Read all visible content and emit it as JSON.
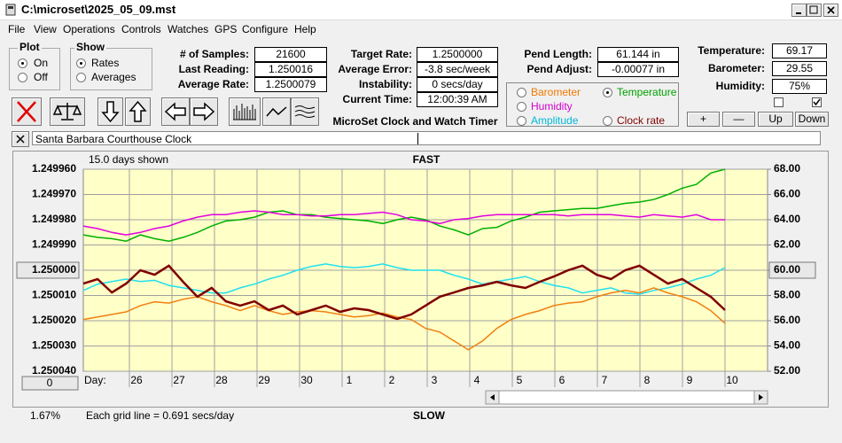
{
  "window": {
    "title": "C:\\microset\\2025_05_09.mst"
  },
  "menu": [
    "File",
    "View",
    "Operations",
    "Controls",
    "Watches",
    "GPS",
    "Configure",
    "Help"
  ],
  "plot_group": {
    "label": "Plot",
    "options": [
      {
        "label": "On",
        "checked": true
      },
      {
        "label": "Off",
        "checked": false
      }
    ]
  },
  "show_group": {
    "label": "Show",
    "options": [
      {
        "label": "Rates",
        "checked": true
      },
      {
        "label": "Averages",
        "checked": false
      }
    ]
  },
  "stats_1": [
    {
      "label": "# of Samples:",
      "value": "21600"
    },
    {
      "label": "Last Reading:",
      "value": "1.250016"
    },
    {
      "label": "Average Rate:",
      "value": "1.2500079"
    }
  ],
  "stats_2": [
    {
      "label": "Target Rate:",
      "value": "1.2500000"
    },
    {
      "label": "Average Error:",
      "value": "-3.8 sec/week"
    },
    {
      "label": "Instability:",
      "value": "0 secs/day"
    },
    {
      "label": "Current Time:",
      "value": "12:00:39 AM"
    }
  ],
  "stats_3": [
    {
      "label": "Pend Length:",
      "value": "61.144 in"
    },
    {
      "label": "Pend Adjust:",
      "value": "-0.00077 in"
    }
  ],
  "stats_4": [
    {
      "label": "Temperature:",
      "value": "69.17"
    },
    {
      "label": "Barometer:",
      "value": "29.55"
    },
    {
      "label": "Humidity:",
      "value": "75%"
    }
  ],
  "app_title": "MicroSet Clock and Watch Timer",
  "trace_options": [
    {
      "label": "Barometer",
      "color": "#f07800",
      "checked": false
    },
    {
      "label": "Temperature",
      "color": "#00a000",
      "checked": true
    },
    {
      "label": "Humidity",
      "color": "#d000d0",
      "checked": false
    },
    {
      "label": "Amplitude",
      "color": "#00b8d8",
      "checked": false
    },
    {
      "label": "Clock rate",
      "color": "#800000",
      "checked": false
    }
  ],
  "checkboxes": [
    {
      "checked": false
    },
    {
      "checked": true
    }
  ],
  "buttons": [
    "+",
    "—",
    "Up",
    "Down"
  ],
  "clock_name": "Santa Barbara Courthouse Clock",
  "chart": {
    "type": "line",
    "days_shown": "15.0 days shown",
    "top_label": "FAST",
    "bottom_label": "SLOW",
    "x_label": "Day:",
    "days": [
      "26",
      "27",
      "28",
      "29",
      "30",
      "1",
      "2",
      "3",
      "4",
      "5",
      "6",
      "7",
      "8",
      "9",
      "10"
    ],
    "grid_note": "Each grid line = 0.691 secs/day",
    "zoom": "1.67%",
    "offset_button": "0",
    "grid": true,
    "ylim": [
      1.25004,
      1.24996
    ],
    "yticks": [
      {
        "value": 1.24996,
        "label": "1.249960"
      },
      {
        "value": 1.24997,
        "label": "1.249970"
      },
      {
        "value": 1.24998,
        "label": "1.249980"
      },
      {
        "value": 1.24999,
        "label": "1.249990"
      },
      {
        "value": 1.25,
        "label": "1.250000"
      },
      {
        "value": 1.25001,
        "label": "1.250010"
      },
      {
        "value": 1.25002,
        "label": "1.250020"
      },
      {
        "value": 1.25003,
        "label": "1.250030"
      },
      {
        "value": 1.25004,
        "label": "1.250040"
      }
    ],
    "y2lim": [
      52,
      68
    ],
    "y2ticks": [
      {
        "value": 68,
        "label": "68.00"
      },
      {
        "value": 66,
        "label": "66.00"
      },
      {
        "value": 64,
        "label": "64.00"
      },
      {
        "value": 62,
        "label": "62.00"
      },
      {
        "value": 60,
        "label": "60.00"
      },
      {
        "value": 58,
        "label": "58.00"
      },
      {
        "value": 56,
        "label": "56.00"
      },
      {
        "value": 54,
        "label": "54.00"
      },
      {
        "value": 52,
        "label": "52.00"
      }
    ],
    "series": [
      {
        "name": "Temperature",
        "color": "#00b000",
        "axis": "y2",
        "values": [
          62.8,
          62.6,
          62.5,
          62.3,
          62.8,
          62.5,
          62.3,
          62.6,
          63.0,
          63.5,
          63.9,
          64.0,
          64.2,
          64.6,
          64.7,
          64.4,
          64.4,
          64.2,
          64.1,
          64.0,
          63.9,
          63.7,
          64.0,
          64.2,
          64.0,
          63.5,
          63.2,
          62.8,
          63.3,
          63.4,
          63.9,
          64.2,
          64.6,
          64.7,
          64.8,
          64.9,
          64.9,
          65.1,
          65.3,
          65.4,
          65.6,
          66.0,
          66.5,
          66.8,
          67.7,
          68.0
        ]
      },
      {
        "name": "Humidity",
        "color": "#e000e0",
        "axis": "y2",
        "values": [
          63.5,
          63.3,
          63.0,
          62.8,
          63.0,
          63.3,
          63.5,
          63.9,
          64.2,
          64.4,
          64.4,
          64.6,
          64.7,
          64.6,
          64.4,
          64.4,
          64.3,
          64.3,
          64.4,
          64.4,
          64.5,
          64.6,
          64.4,
          64.0,
          63.9,
          63.7,
          64.0,
          64.1,
          64.3,
          64.4,
          64.4,
          64.4,
          64.4,
          64.4,
          64.3,
          64.4,
          64.4,
          64.4,
          64.3,
          64.2,
          64.4,
          64.3,
          64.2,
          64.4,
          64.0,
          64.0
        ]
      },
      {
        "name": "Amplitude",
        "color": "#20e0f0",
        "axis": "y2",
        "values": [
          58.4,
          58.9,
          59.1,
          59.3,
          59.1,
          59.2,
          58.8,
          58.6,
          58.4,
          58.2,
          58.2,
          58.6,
          58.9,
          59.3,
          59.6,
          60.0,
          60.3,
          60.5,
          60.3,
          60.2,
          60.3,
          60.5,
          60.2,
          60.0,
          60.0,
          60.0,
          59.6,
          59.3,
          58.9,
          59.1,
          59.3,
          59.5,
          59.1,
          58.8,
          58.6,
          58.2,
          58.4,
          58.6,
          58.2,
          58.1,
          58.4,
          58.6,
          58.9,
          59.3,
          59.6,
          60.2
        ]
      },
      {
        "name": "Barometer",
        "color": "#f08010",
        "axis": "y2",
        "values": [
          56.1,
          56.3,
          56.5,
          56.7,
          57.2,
          57.5,
          57.4,
          57.7,
          57.9,
          57.5,
          57.2,
          56.8,
          57.2,
          56.8,
          56.5,
          56.7,
          56.8,
          56.7,
          56.5,
          56.3,
          56.4,
          56.6,
          56.3,
          56.1,
          55.4,
          55.1,
          54.4,
          53.7,
          54.4,
          55.4,
          56.1,
          56.5,
          56.8,
          57.2,
          57.4,
          57.5,
          57.9,
          58.2,
          58.4,
          58.2,
          58.6,
          58.2,
          57.9,
          57.5,
          56.8,
          55.8
        ]
      },
      {
        "name": "Clock rate",
        "color": "#800000",
        "axis": "y",
        "values": [
          1.2500053,
          1.2500035,
          1.2500088,
          1.2500053,
          1.25,
          1.2500018,
          1.2499982,
          1.2500046,
          1.2500105,
          1.250007,
          1.2500123,
          1.250014,
          1.2500123,
          1.2500158,
          1.250014,
          1.2500175,
          1.2500158,
          1.250014,
          1.2500165,
          1.2500151,
          1.2500158,
          1.2500175,
          1.2500193,
          1.2500175,
          1.250014,
          1.2500105,
          1.2500088,
          1.250007,
          1.250006,
          1.2500046,
          1.250006,
          1.250007,
          1.2500046,
          1.2500025,
          1.25,
          1.2499982,
          1.2500018,
          1.2500035,
          1.25,
          1.2499982,
          1.2500018,
          1.2500053,
          1.2500035,
          1.250007,
          1.2500105,
          1.2500158
        ]
      }
    ]
  }
}
